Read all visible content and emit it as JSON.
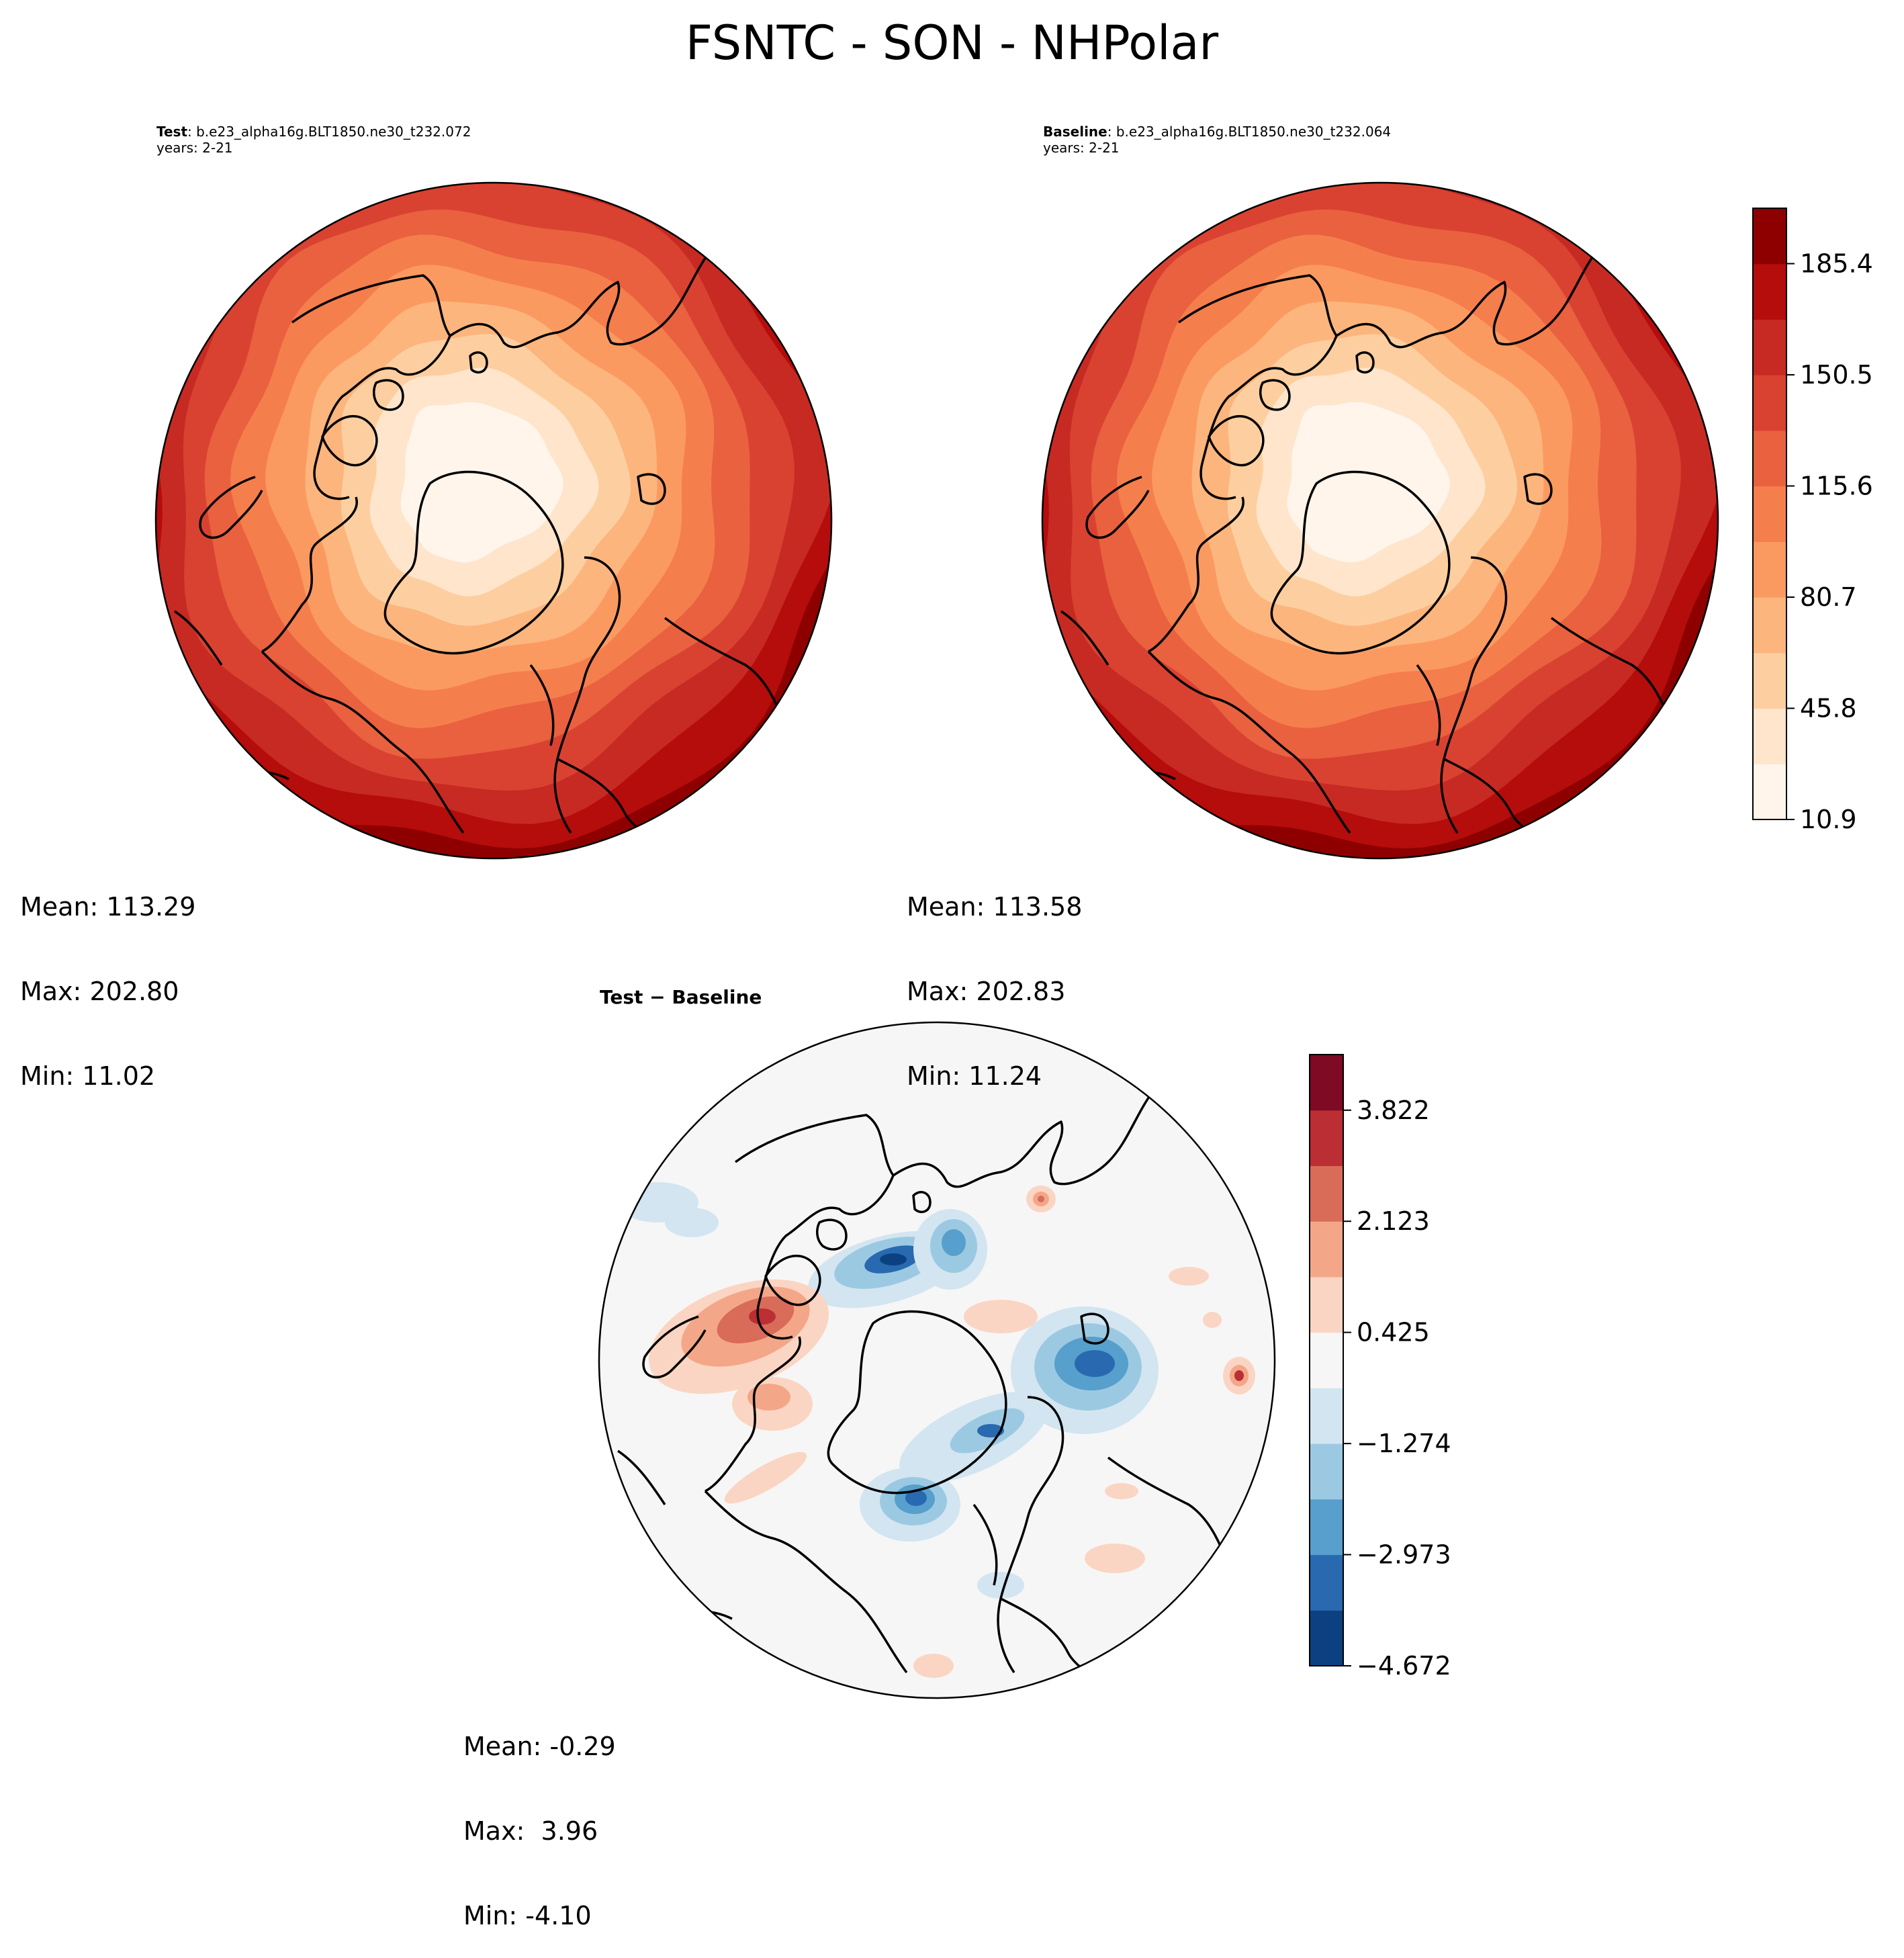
{
  "title": "FSNTC - SON - NHPolar",
  "panels": {
    "test": {
      "label": "Test",
      "case": ": b.e23_alpha16g.BLT1850.ne30_t232.072",
      "years": "years: 2-21",
      "stats": {
        "mean": "Mean: 113.29",
        "max": "Max: 202.80",
        "min": "Min: 11.02"
      }
    },
    "baseline": {
      "label": "Baseline",
      "case": ": b.e23_alpha16g.BLT1850.ne30_t232.064",
      "years": "years: 2-21",
      "stats": {
        "mean": "Mean: 113.58",
        "max": "Max: 202.83",
        "min": "Min: 11.24"
      }
    },
    "diff": {
      "title": "Test − Baseline",
      "stats": {
        "mean": "Mean: -0.29",
        "max": "Max:  3.96",
        "min": "Min: -4.10"
      }
    }
  },
  "colorbars": {
    "main": {
      "ticks": [
        "10.9",
        "45.8",
        "80.7",
        "115.6",
        "150.5",
        "185.4"
      ],
      "tick_values": [
        10.9,
        45.8,
        80.7,
        115.6,
        150.5,
        185.4
      ],
      "range": [
        10.9,
        202.8
      ],
      "colors": [
        "#fff5eb",
        "#fee5cc",
        "#fdcfa0",
        "#fcb57d",
        "#fb9a60",
        "#f57e4d",
        "#e9613f",
        "#d94231",
        "#c72a22",
        "#b50c0c",
        "#8e0000"
      ]
    },
    "diff": {
      "ticks": [
        "−4.672",
        "−2.973",
        "−1.274",
        "0.425",
        "2.123",
        "3.822"
      ],
      "tick_values": [
        -4.672,
        -2.973,
        -1.274,
        0.425,
        2.123,
        3.822
      ],
      "range": [
        -4.672,
        4.672
      ],
      "colors": [
        "#0b4180",
        "#2869b0",
        "#579fcc",
        "#9cc9e2",
        "#d2e5f1",
        "#f6f6f6",
        "#fbd5c3",
        "#f3a788",
        "#d96b59",
        "#bb2e33",
        "#7e0a24"
      ]
    }
  }
}
